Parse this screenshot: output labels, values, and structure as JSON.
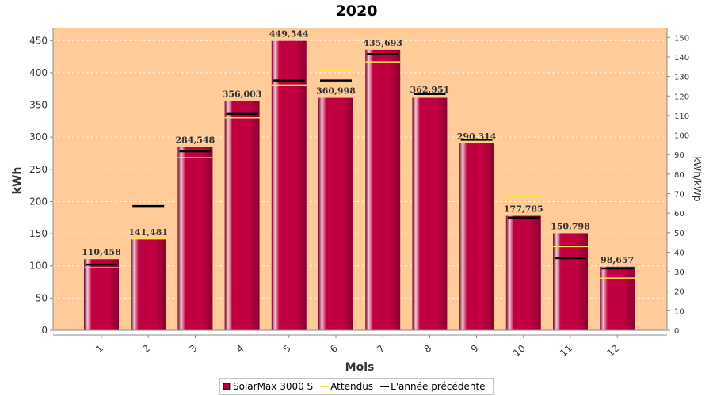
{
  "chart_data": {
    "type": "bar",
    "title": "2020",
    "xlabel": "Mois",
    "ylabel": "kWh",
    "y2label": "kWh/kWp",
    "categories": [
      "1",
      "2",
      "3",
      "4",
      "5",
      "6",
      "7",
      "8",
      "9",
      "10",
      "11",
      "12"
    ],
    "ylim": [
      0,
      470
    ],
    "yticks": [
      0,
      50,
      100,
      150,
      200,
      250,
      300,
      350,
      400,
      450
    ],
    "y2lim": [
      0,
      155
    ],
    "y2ticks": [
      0,
      10,
      20,
      30,
      40,
      50,
      60,
      70,
      80,
      90,
      100,
      110,
      120,
      130,
      140,
      150
    ],
    "series": [
      {
        "name": "SolarMax 3000 S",
        "kind": "bar",
        "color": "#b0003a",
        "values": [
          110.458,
          141.481,
          284.548,
          356.003,
          449.544,
          360.998,
          435.693,
          362.951,
          290.314,
          177.785,
          150.798,
          98.657
        ],
        "labels": [
          "110,458",
          "141,481",
          "284,548",
          "356,003",
          "449,544",
          "360,998",
          "435,693",
          "362,951",
          "290,314",
          "177,785",
          "150,798",
          "98,657"
        ]
      },
      {
        "name": "Attendus",
        "kind": "marker",
        "color": "#ffe24a",
        "values": [
          97,
          142,
          268,
          330,
          381,
          403,
          417,
          362,
          298,
          207,
          130,
          81
        ]
      },
      {
        "name": "L'année précédente",
        "kind": "marker",
        "color": "#000000",
        "values": [
          102,
          193,
          278,
          336,
          388,
          388,
          429,
          367,
          296,
          175,
          112,
          96
        ]
      }
    ],
    "background": "#ffcc99",
    "grid": true,
    "legend": "bottom"
  }
}
